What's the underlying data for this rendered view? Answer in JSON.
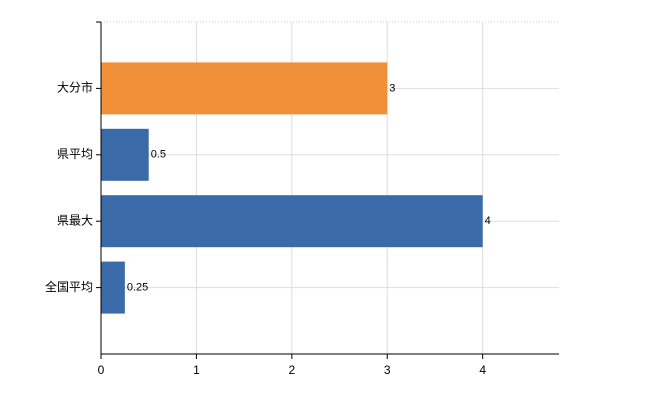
{
  "chart_data": {
    "type": "hbar",
    "categories": [
      "大分市",
      "県平均",
      "県最大",
      "全国平均"
    ],
    "values": [
      3,
      0.5,
      4,
      0.25
    ],
    "colors": [
      "#f0913a",
      "#3a6aa8",
      "#3a6aa8",
      "#3a6aa8"
    ],
    "xlim": [
      0,
      4.8
    ],
    "xticks": [
      0,
      1,
      2,
      3,
      4
    ],
    "grid": true
  }
}
